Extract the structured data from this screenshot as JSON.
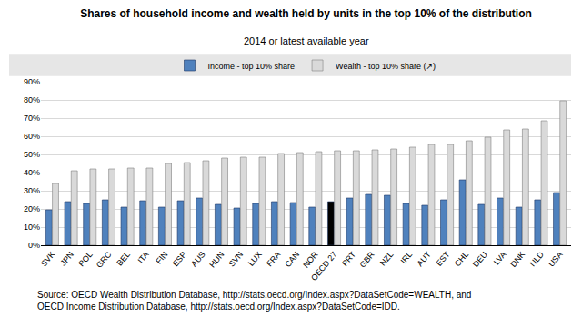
{
  "chart_data": {
    "type": "bar",
    "title": "Shares of household income and wealth held by units in the top 10% of the distribution",
    "subtitle": "2014 or latest available year",
    "notes": [
      "Source: OECD Wealth Distribution Database, http://stats.oecd.org/Index.aspx?DataSetCode=WEALTH, and",
      "OECD Income Distribution Database, http://stats.oecd.org/Index.aspx?DataSetCode=IDD."
    ],
    "categories": [
      "SVK",
      "JPN",
      "POL",
      "GRC",
      "BEL",
      "ITA",
      "FIN",
      "ESP",
      "AUS",
      "HUN",
      "SVN",
      "LUX",
      "FRA",
      "CAN",
      "NOR",
      "OECD 27",
      "PRT",
      "GBR",
      "NZL",
      "IRL",
      "AUT",
      "EST",
      "CHL",
      "DEU",
      "LVA",
      "DNK",
      "NLD",
      "USA"
    ],
    "series": [
      {
        "name": "Income - top 10% share",
        "colors": [
          "#4f81bd",
          "#4f81bd",
          "#4f81bd",
          "#4f81bd",
          "#4f81bd",
          "#4f81bd",
          "#4f81bd",
          "#4f81bd",
          "#4f81bd",
          "#4f81bd",
          "#4f81bd",
          "#4f81bd",
          "#4f81bd",
          "#4f81bd",
          "#4f81bd",
          "#000000",
          "#4f81bd",
          "#4f81bd",
          "#4f81bd",
          "#4f81bd",
          "#4f81bd",
          "#4f81bd",
          "#4f81bd",
          "#4f81bd",
          "#4f81bd",
          "#4f81bd",
          "#4f81bd",
          "#4f81bd"
        ],
        "values": [
          19.5,
          24,
          23,
          25,
          21,
          24.5,
          21,
          24.5,
          26,
          22.5,
          20.5,
          23,
          24,
          23.5,
          21,
          24,
          26,
          28,
          27.5,
          23,
          22,
          25,
          36,
          22.5,
          26,
          21,
          25,
          29
        ]
      },
      {
        "name": "Wealth - top 10% share (↗)",
        "color": "#d9d9d9",
        "values": [
          34,
          41,
          42,
          42,
          42.5,
          42.5,
          45,
          45.5,
          46.5,
          48,
          48.5,
          48.5,
          50.5,
          51,
          51.5,
          52,
          52,
          52.5,
          53,
          54,
          55.5,
          55.5,
          57.5,
          59.5,
          63.5,
          64,
          68.5,
          79.5
        ]
      }
    ],
    "ylim": [
      0,
      90
    ],
    "yticks": [
      {
        "value": 0,
        "label": "0%"
      },
      {
        "value": 10,
        "label": "10%"
      },
      {
        "value": 20,
        "label": "20%"
      },
      {
        "value": 30,
        "label": "30%"
      },
      {
        "value": 40,
        "label": "40%"
      },
      {
        "value": 50,
        "label": "50%"
      },
      {
        "value": 60,
        "label": "60%"
      },
      {
        "value": 70,
        "label": "70%"
      },
      {
        "value": 80,
        "label": "80%"
      },
      {
        "value": 90,
        "label": "90%"
      }
    ],
    "grid": true,
    "legend": "top"
  }
}
